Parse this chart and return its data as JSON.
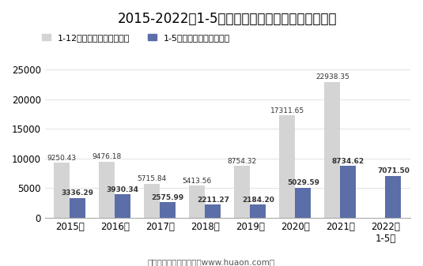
{
  "title": "2015-2022年1-5月大连商品交易所豆油期货成交量",
  "categories": [
    "2015年",
    "2016年",
    "2017年",
    "2018年",
    "2019年",
    "2020年",
    "2021年",
    "2022年\n1-5月"
  ],
  "full_year": [
    9250.43,
    9476.18,
    5715.84,
    5413.56,
    8754.32,
    17311.65,
    22938.35,
    null
  ],
  "jan_may": [
    3336.29,
    3930.34,
    2575.99,
    2211.27,
    2184.2,
    5029.59,
    8734.62,
    7071.5
  ],
  "color_full": "#d4d4d4",
  "color_jan_may": "#5b6ea8",
  "legend_full": "1-12月期货成交量（万手）",
  "legend_jan_may": "1-5月期货成交量（万手）",
  "ylim": [
    0,
    27000
  ],
  "yticks": [
    0,
    5000,
    10000,
    15000,
    20000,
    25000
  ],
  "footer": "制图：华经产业研究院（www.huaon.com）",
  "bar_width": 0.35,
  "label_fontsize": 6.5,
  "title_fontsize": 12
}
